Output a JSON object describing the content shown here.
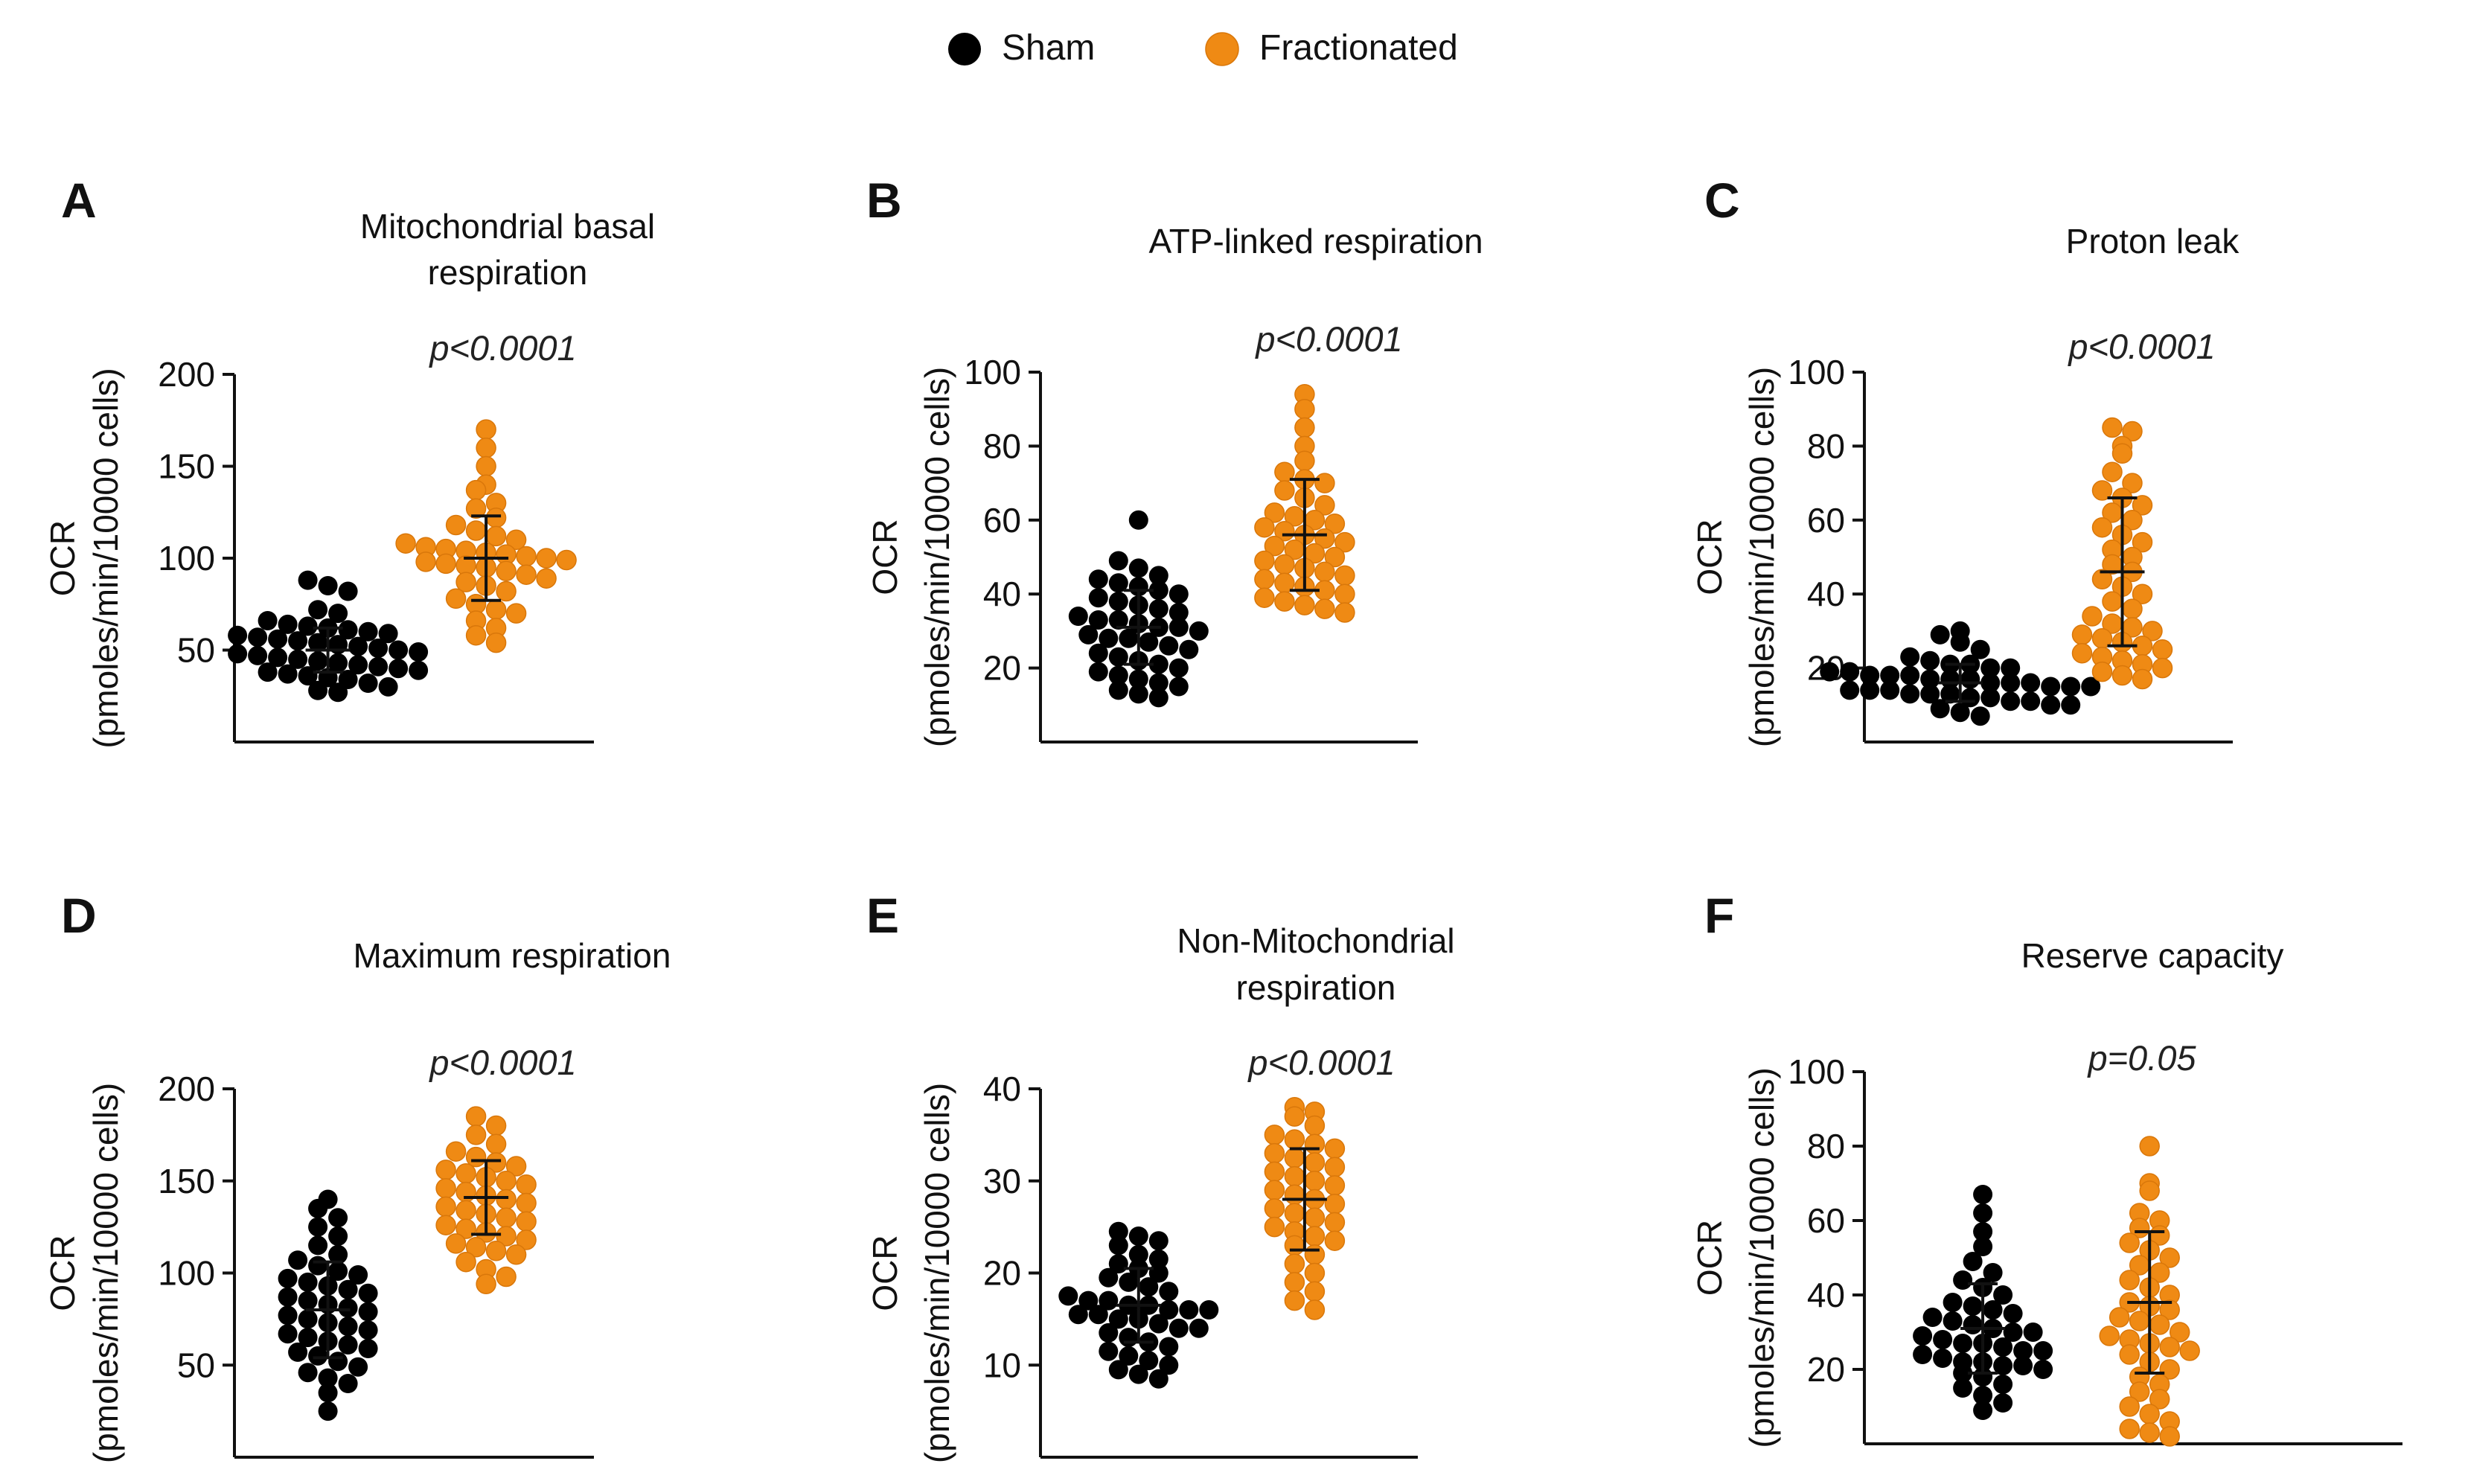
{
  "legend": {
    "items": [
      {
        "label": "Sham",
        "color": "#000000"
      },
      {
        "label": "Fractionated",
        "color": "#ef8a14"
      }
    ]
  },
  "chart_data": [
    {
      "panel": "A",
      "type": "scatter",
      "title": [
        "Mitochondrial basal",
        "respiration"
      ],
      "pvalue": "p<0.0001",
      "ylabel": [
        "OCR",
        "(pmoles/min/10000  cells)"
      ],
      "ylim": [
        0,
        200
      ],
      "yticks": [
        50,
        100,
        150,
        200
      ],
      "categories": [
        "Sham",
        "Fractionated"
      ],
      "series": [
        {
          "name": "Sham",
          "mean": 50,
          "sd": 12,
          "values": [
            88,
            85,
            82,
            72,
            70,
            66,
            64,
            63,
            62,
            61,
            60,
            59,
            58,
            57,
            56,
            55,
            54,
            53,
            52,
            51,
            50,
            49,
            48,
            47,
            46,
            45,
            44,
            43,
            42,
            41,
            40,
            39,
            38,
            37,
            36,
            35,
            34,
            32,
            30,
            28,
            27
          ]
        },
        {
          "name": "Fractionated",
          "mean": 100,
          "sd": 23,
          "values": [
            170,
            160,
            150,
            140,
            137,
            130,
            127,
            122,
            118,
            115,
            112,
            110,
            108,
            106,
            105,
            104,
            103,
            102,
            101,
            100,
            99,
            98,
            97,
            96,
            95,
            93,
            91,
            89,
            87,
            85,
            82,
            78,
            75,
            72,
            70,
            66,
            62,
            58,
            54
          ]
        }
      ]
    },
    {
      "panel": "B",
      "type": "scatter",
      "title": [
        "ATP-linked  respiration"
      ],
      "pvalue": "p<0.0001",
      "ylabel": [
        "OCR",
        "(pmoles/min/10000  cells)"
      ],
      "ylim": [
        0,
        100
      ],
      "yticks": [
        20,
        40,
        60,
        80,
        100
      ],
      "categories": [
        "Sham",
        "Fractionated"
      ],
      "series": [
        {
          "name": "Sham",
          "mean": 31,
          "sd": 10,
          "values": [
            60,
            49,
            47,
            45,
            44,
            43,
            42,
            41,
            40,
            39,
            38,
            37,
            36,
            35,
            34,
            33,
            33,
            32,
            31,
            31,
            30,
            29,
            28,
            28,
            27,
            26,
            25,
            24,
            23,
            22,
            21,
            20,
            19,
            18,
            17,
            16,
            15,
            14,
            13,
            12
          ]
        },
        {
          "name": "Fractionated",
          "mean": 56,
          "sd": 15,
          "values": [
            94,
            90,
            85,
            80,
            76,
            73,
            71,
            70,
            68,
            66,
            64,
            62,
            61,
            60,
            59,
            58,
            57,
            56,
            55,
            54,
            53,
            52,
            51,
            50,
            49,
            48,
            47,
            46,
            45,
            44,
            43,
            42,
            41,
            40,
            39,
            38,
            37,
            36,
            35
          ]
        }
      ]
    },
    {
      "panel": "C",
      "type": "scatter",
      "title": [
        "Proton leak"
      ],
      "pvalue": "p<0.0001",
      "ylabel": [
        "OCR",
        "(pmoles/min/10000  cells)"
      ],
      "ylim": [
        0,
        100
      ],
      "yticks": [
        20,
        40,
        60,
        80,
        100
      ],
      "categories": [
        "Sham",
        "Fractionated"
      ],
      "series": [
        {
          "name": "Sham",
          "mean": 16,
          "sd": 5,
          "values": [
            30,
            29,
            27,
            25,
            23,
            22,
            21,
            21,
            20,
            20,
            19,
            19,
            18,
            18,
            18,
            17,
            17,
            17,
            16,
            16,
            16,
            15,
            15,
            15,
            14,
            14,
            14,
            13,
            13,
            13,
            12,
            12,
            11,
            11,
            10,
            10,
            9,
            8,
            7
          ]
        },
        {
          "name": "Fractionated",
          "mean": 46,
          "sd": 20,
          "values": [
            85,
            84,
            80,
            78,
            73,
            70,
            68,
            66,
            64,
            62,
            60,
            58,
            56,
            54,
            52,
            50,
            48,
            46,
            44,
            42,
            40,
            38,
            36,
            34,
            32,
            31,
            30,
            29,
            28,
            27,
            26,
            25,
            24,
            23,
            22,
            21,
            20,
            19,
            18,
            17
          ]
        }
      ]
    },
    {
      "panel": "D",
      "type": "scatter",
      "title": [
        "Maximum  respiration"
      ],
      "pvalue": "p<0.0001",
      "ylabel": [
        "OCR",
        "(pmoles/min/10000  cells)"
      ],
      "ylim": [
        0,
        200
      ],
      "yticks": [
        50,
        100,
        150,
        200
      ],
      "categories": [
        "Sham",
        "Fractionated"
      ],
      "series": [
        {
          "name": "Sham",
          "mean": 80,
          "sd": 26,
          "values": [
            140,
            135,
            130,
            125,
            120,
            115,
            110,
            107,
            104,
            101,
            99,
            97,
            95,
            93,
            91,
            89,
            87,
            85,
            83,
            81,
            79,
            77,
            75,
            73,
            71,
            69,
            67,
            65,
            63,
            61,
            59,
            57,
            55,
            52,
            49,
            46,
            43,
            40,
            35,
            25
          ]
        },
        {
          "name": "Fractionated",
          "mean": 141,
          "sd": 20,
          "values": [
            185,
            180,
            175,
            170,
            166,
            163,
            160,
            158,
            156,
            154,
            152,
            150,
            148,
            146,
            144,
            142,
            140,
            138,
            136,
            134,
            132,
            130,
            128,
            126,
            124,
            122,
            120,
            118,
            116,
            114,
            112,
            110,
            106,
            102,
            98,
            94
          ]
        }
      ]
    },
    {
      "panel": "E",
      "type": "scatter",
      "title": [
        "Non-Mitochondrial",
        "respiration"
      ],
      "pvalue": "p<0.0001",
      "ylabel": [
        "OCR",
        "(pmoles/min/10000  cells)"
      ],
      "ylim": [
        0,
        40
      ],
      "yticks": [
        10,
        20,
        30,
        40
      ],
      "categories": [
        "Sham",
        "Fractionated"
      ],
      "series": [
        {
          "name": "Sham",
          "mean": 16.5,
          "sd": 4,
          "values": [
            24.5,
            24,
            23.5,
            23,
            22,
            21.5,
            21,
            20.5,
            20,
            19.5,
            19,
            18.5,
            18,
            17.5,
            17,
            17,
            16.5,
            16.5,
            16,
            16,
            16,
            15.5,
            15.5,
            15,
            15,
            14.5,
            14,
            14,
            13.5,
            13,
            12.5,
            12,
            11.5,
            11,
            10.5,
            10,
            9.5,
            9,
            8.5
          ]
        },
        {
          "name": "Fractionated",
          "mean": 28,
          "sd": 5.5,
          "values": [
            38,
            37.5,
            37,
            36,
            35,
            34.5,
            34,
            33.5,
            33,
            32.5,
            32,
            31.5,
            31,
            30.5,
            30,
            29.5,
            29,
            28.5,
            28,
            27.5,
            27,
            26.5,
            26,
            25.5,
            25,
            24.5,
            24,
            23.5,
            23,
            22,
            21,
            20,
            19,
            18,
            17,
            16
          ]
        }
      ]
    },
    {
      "panel": "F",
      "type": "scatter",
      "title": [
        "Reserve  capacity"
      ],
      "pvalue": "p=0.05",
      "ylabel": [
        "OCR",
        "(pmoles/min/10000  cells)"
      ],
      "ylim": [
        0,
        100
      ],
      "yticks": [
        20,
        40,
        60,
        80,
        100
      ],
      "categories": [
        "Sham",
        "Fractionated"
      ],
      "series": [
        {
          "name": "Sham",
          "mean": 31,
          "sd": 12,
          "values": [
            67,
            62,
            57,
            53,
            49,
            46,
            44,
            42,
            40,
            38,
            37,
            36,
            35,
            34,
            33,
            32,
            31,
            30,
            30,
            29,
            28,
            27,
            27,
            26,
            25,
            25,
            24,
            23,
            22,
            22,
            21,
            21,
            20,
            19,
            18,
            16,
            15,
            13,
            11,
            9
          ]
        },
        {
          "name": "Fractionated",
          "mean": 38,
          "sd": 19,
          "values": [
            80,
            70,
            68,
            62,
            60,
            58,
            56,
            54,
            52,
            50,
            48,
            46,
            44,
            42,
            40,
            38,
            37,
            36,
            34,
            33,
            32,
            30,
            29,
            28,
            27,
            26,
            25,
            24,
            22,
            20,
            18,
            16,
            14,
            12,
            10,
            8,
            6,
            4,
            3,
            2
          ]
        }
      ]
    }
  ]
}
